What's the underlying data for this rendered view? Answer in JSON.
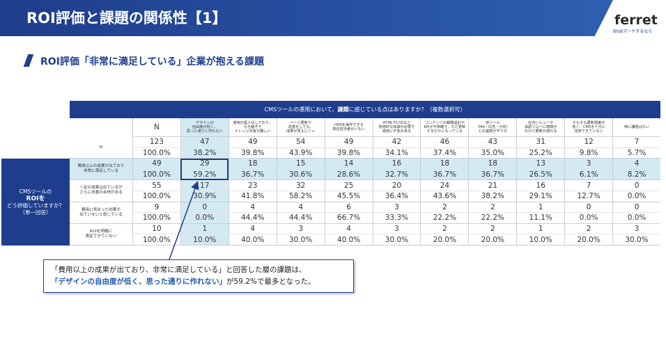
{
  "header": {
    "title": "ROI評価と課題の関係性【1】",
    "logo": "ferret",
    "logo_tagline": "BtoBマーケするなら"
  },
  "subtitle": "ROI評価「非常に満足している」企業が抱える課題",
  "table": {
    "question": [
      "CMSツールの運用において、",
      "課題",
      "に感じている点はありますか？（複数選択可）"
    ],
    "respondent_label": [
      "CMSツールの",
      "ROIを",
      "どう評価していますか？",
      "（単一回答）"
    ],
    "columns": [
      [
        "N"
      ],
      [
        "デザインの",
        "自由度が低く、",
        "思った通りに作れない"
      ],
      [
        "運用が属人化しており、",
        "引き継ぎや",
        "ナレッジ共有が難しい"
      ],
      [
        "ページ更新や",
        "改善をしても、",
        "成果が見えにくい"
      ],
      [
        "CMSを操作できる",
        "専任担当者がいない"
      ],
      [
        "HTMLやCSSなど",
        "技術的な知識が必要で",
        "運用に不安がある"
      ],
      [
        "コンテンツの戦略設計や",
        "KPIが不明確で、ただ更新",
        "するだけになっている"
      ],
      [
        "他ツール",
        "（MA・広告・分析）",
        "との連携が不十分"
      ],
      [
        "社内レビューや",
        "承認フローに時間が",
        "かかり更新が遅れる"
      ],
      [
        "そもそも更新頻度が",
        "低く、CMSを十分に",
        "活用できていない"
      ],
      [
        "特に課題はない"
      ]
    ],
    "rows": [
      {
        "label": [
          "N"
        ],
        "counts": [
          "123",
          "47",
          "49",
          "54",
          "49",
          "42",
          "46",
          "43",
          "31",
          "12",
          "7"
        ],
        "percents": [
          "100.0%",
          "38.2%",
          "39.8%",
          "43.9%",
          "39.8%",
          "34.1%",
          "37.4%",
          "35.0%",
          "25.2%",
          "9.8%",
          "5.7%"
        ]
      },
      {
        "label": [
          "費用以上の成果が出ており",
          "非常に満足している"
        ],
        "counts": [
          "49",
          "29",
          "18",
          "15",
          "14",
          "16",
          "18",
          "18",
          "13",
          "3",
          "4"
        ],
        "percents": [
          "100.0%",
          "59.2%",
          "36.7%",
          "30.6%",
          "28.6%",
          "32.7%",
          "36.7%",
          "36.7%",
          "26.5%",
          "6.1%",
          "8.2%"
        ]
      },
      {
        "label": [
          "一定の成果は出ているが",
          "さらに改善の余地がある"
        ],
        "counts": [
          "55",
          "17",
          "23",
          "32",
          "25",
          "20",
          "24",
          "21",
          "16",
          "7",
          "0"
        ],
        "percents": [
          "100.0%",
          "30.9%",
          "41.8%",
          "58.2%",
          "45.5%",
          "36.4%",
          "43.6%",
          "38.2%",
          "29.1%",
          "12.7%",
          "0.0%"
        ]
      },
      {
        "label": [
          "費用に見合った効果が",
          "出ていないと感じている"
        ],
        "counts": [
          "9",
          "0",
          "4",
          "4",
          "6",
          "3",
          "2",
          "2",
          "1",
          "0",
          "0"
        ],
        "percents": [
          "100.0%",
          "0.0%",
          "44.4%",
          "44.4%",
          "66.7%",
          "33.3%",
          "22.2%",
          "22.2%",
          "11.1%",
          "0.0%",
          "0.0%"
        ]
      },
      {
        "label": [
          "ROIを明確に",
          "測定できていない"
        ],
        "counts": [
          "10",
          "1",
          "4",
          "3",
          "4",
          "3",
          "2",
          "2",
          "1",
          "2",
          "3"
        ],
        "percents": [
          "100.0%",
          "10.0%",
          "40.0%",
          "30.0%",
          "40.0%",
          "30.0%",
          "20.0%",
          "20.0%",
          "10.0%",
          "20.0%",
          "30.0%"
        ]
      }
    ]
  },
  "callout": {
    "line1": "「費用以上の成果が出ており、非常に満足している」と回答した層の課題は、",
    "line2_bold": "「デザインの自由度が低く、思った通りに作れない」",
    "line2_rest": "が59.2%で最多となった。"
  }
}
